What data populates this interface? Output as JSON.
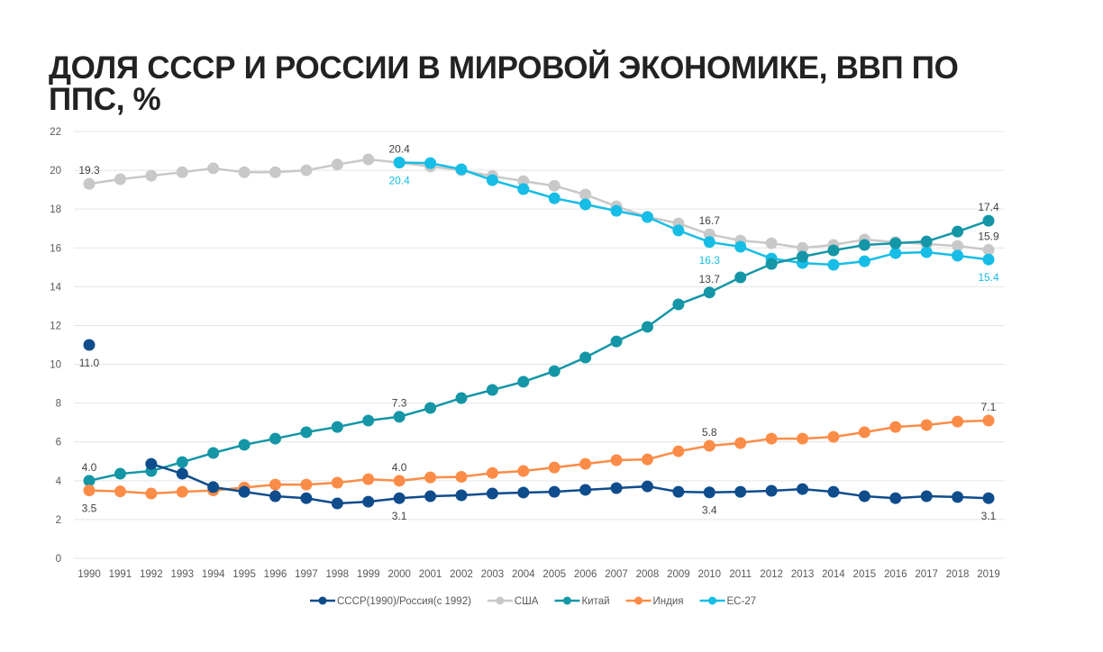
{
  "title": "ДОЛЯ СССР И РОССИИ В МИРОВОЙ ЭКОНОМИКЕ, ВВП ПО ППС, %",
  "chart_data": {
    "type": "line",
    "title": "ДОЛЯ СССР И РОССИИ В МИРОВОЙ ЭКОНОМИКЕ, ВВП ПО ППС, %",
    "xlabel": "",
    "ylabel": "",
    "ylim": [
      0,
      22
    ],
    "yticks": [
      "0",
      "2",
      "4",
      "6",
      "8",
      "10",
      "12",
      "14",
      "16",
      "18",
      "20",
      "22"
    ],
    "grid": true,
    "legend": "bottom",
    "x": [
      "1990",
      "1991",
      "1992",
      "1993",
      "1994",
      "1995",
      "1996",
      "1997",
      "1998",
      "1999",
      "2000",
      "2001",
      "2002",
      "2003",
      "2004",
      "2005",
      "2006",
      "2007",
      "2008",
      "2009",
      "2010",
      "2011",
      "2012",
      "2013",
      "2014",
      "2015",
      "2016",
      "2017",
      "2018",
      "2019"
    ],
    "series": [
      {
        "name": "СССР(1990)/Россия(с 1992)",
        "color": "#0f4c8c",
        "values": [
          11.0,
          null,
          4.87,
          4.36,
          3.67,
          3.43,
          3.2,
          3.1,
          2.83,
          2.92,
          3.1,
          3.2,
          3.25,
          3.34,
          3.39,
          3.43,
          3.53,
          3.62,
          3.71,
          3.43,
          3.4,
          3.43,
          3.48,
          3.57,
          3.43,
          3.2,
          3.1,
          3.2,
          3.16,
          3.1
        ]
      },
      {
        "name": "США",
        "color": "#c8c8c8",
        "values": [
          19.3,
          19.54,
          19.72,
          19.9,
          20.1,
          19.9,
          19.9,
          20.0,
          20.3,
          20.56,
          20.4,
          20.2,
          20.0,
          19.7,
          19.44,
          19.2,
          18.75,
          18.14,
          17.6,
          17.26,
          16.7,
          16.38,
          16.24,
          16.0,
          16.15,
          16.43,
          16.3,
          16.2,
          16.1,
          15.9
        ]
      },
      {
        "name": "Китай",
        "color": "#1496a6",
        "values": [
          4.0,
          4.36,
          4.5,
          4.96,
          5.43,
          5.85,
          6.17,
          6.5,
          6.77,
          7.1,
          7.3,
          7.75,
          8.26,
          8.68,
          9.1,
          9.65,
          10.35,
          11.18,
          11.93,
          13.09,
          13.7,
          14.48,
          15.17,
          15.55,
          15.87,
          16.15,
          16.24,
          16.33,
          16.84,
          17.4
        ]
      },
      {
        "name": "Индия",
        "color": "#fb8c47",
        "values": [
          3.5,
          3.45,
          3.34,
          3.43,
          3.5,
          3.65,
          3.8,
          3.8,
          3.9,
          4.08,
          4.0,
          4.17,
          4.2,
          4.4,
          4.5,
          4.68,
          4.87,
          5.06,
          5.1,
          5.52,
          5.8,
          5.94,
          6.17,
          6.17,
          6.26,
          6.5,
          6.77,
          6.87,
          7.05,
          7.1
        ]
      },
      {
        "name": "ЕС-27",
        "color": "#16bde6",
        "values": [
          null,
          null,
          null,
          null,
          null,
          null,
          null,
          null,
          null,
          null,
          20.4,
          20.37,
          20.05,
          19.49,
          19.03,
          18.56,
          18.24,
          17.91,
          17.59,
          16.9,
          16.3,
          16.06,
          15.45,
          15.22,
          15.13,
          15.31,
          15.73,
          15.78,
          15.6,
          15.4
        ]
      }
    ],
    "data_labels": [
      {
        "series": 0,
        "year": "1990",
        "text": "11.0",
        "pos": "below"
      },
      {
        "series": 0,
        "year": "2000",
        "text": "3.1",
        "pos": "below"
      },
      {
        "series": 0,
        "year": "2010",
        "text": "3.4",
        "pos": "below"
      },
      {
        "series": 0,
        "year": "2019",
        "text": "3.1",
        "pos": "below"
      },
      {
        "series": 1,
        "year": "1990",
        "text": "19.3",
        "pos": "above"
      },
      {
        "series": 1,
        "year": "2000",
        "text": "20.4",
        "pos": "above"
      },
      {
        "series": 1,
        "year": "2010",
        "text": "16.7",
        "pos": "above"
      },
      {
        "series": 1,
        "year": "2019",
        "text": "15.9",
        "pos": "above"
      },
      {
        "series": 2,
        "year": "1990",
        "text": "4.0",
        "pos": "above"
      },
      {
        "series": 2,
        "year": "2000",
        "text": "7.3",
        "pos": "above"
      },
      {
        "series": 2,
        "year": "2010",
        "text": "13.7",
        "pos": "above"
      },
      {
        "series": 2,
        "year": "2019",
        "text": "17.4",
        "pos": "above"
      },
      {
        "series": 3,
        "year": "1990",
        "text": "3.5",
        "pos": "below"
      },
      {
        "series": 3,
        "year": "2000",
        "text": "4.0",
        "pos": "above"
      },
      {
        "series": 3,
        "year": "2010",
        "text": "5.8",
        "pos": "above"
      },
      {
        "series": 3,
        "year": "2019",
        "text": "7.1",
        "pos": "above"
      },
      {
        "series": 4,
        "year": "2000",
        "text": "20.4",
        "pos": "below"
      },
      {
        "series": 4,
        "year": "2010",
        "text": "16.3",
        "pos": "below"
      },
      {
        "series": 4,
        "year": "2019",
        "text": "15.4",
        "pos": "below"
      }
    ]
  }
}
